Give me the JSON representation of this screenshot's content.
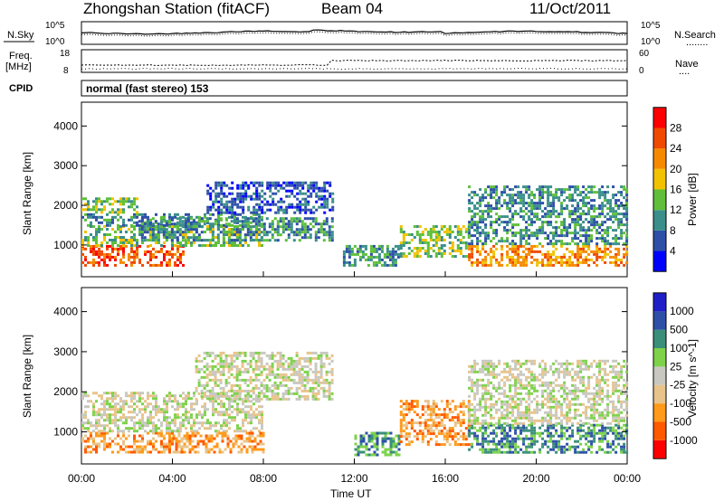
{
  "header": {
    "station": "Zhongshan Station (fitACF)",
    "beam": "Beam 04",
    "date": "11/Oct/2011",
    "program": "normal (fast stereo) 153"
  },
  "strip_labels": {
    "nsky": "N.Sky",
    "nsearch": "N.Search",
    "nsearch_dots": "........",
    "freq_line1": "Freq.",
    "freq_line2": "[MHz]",
    "nave": "Nave",
    "nave_dots": "....",
    "cpid": "CPID"
  },
  "strip_ticks": {
    "noise_left": [
      "10^5",
      "10^0"
    ],
    "noise_right": [
      "10^5",
      "10^0"
    ],
    "freq_left": [
      "18",
      "8"
    ],
    "freq_right": [
      "60",
      "0"
    ]
  },
  "colors": {
    "power_scale": [
      "#0000ff",
      "#2e4fa8",
      "#3a8f8a",
      "#5fbf3a",
      "#f2c200",
      "#f58a00",
      "#f04a00",
      "#ff0000"
    ],
    "velocity_scale": [
      "#ff0000",
      "#ff5a00",
      "#ff9a1a",
      "#e8c48a",
      "#c8c8c0",
      "#7ed24a",
      "#3a8f7a",
      "#2e4fa8",
      "#1f1fc8"
    ]
  },
  "chart_data": [
    {
      "type": "heatmap",
      "name_panel": "power",
      "ylabel": "Slant Range [km]",
      "yticks": [
        "1000",
        "2000",
        "3000",
        "4000"
      ],
      "ylim": [
        200,
        4600
      ],
      "xlim": [
        0,
        24
      ],
      "colorbar_label": "Power [dB]",
      "colorbar_ticks": [
        "4",
        "8",
        "12",
        "16",
        "20",
        "24",
        "28"
      ],
      "cells": [
        {
          "t0": 0.0,
          "t1": 4.5,
          "r0": 500,
          "r1": 1000,
          "level": 6
        },
        {
          "t0": 0.0,
          "t1": 8.0,
          "r0": 1000,
          "r1": 1500,
          "level": 3
        },
        {
          "t0": 0.0,
          "t1": 8.0,
          "r0": 1500,
          "r1": 1800,
          "level": 2
        },
        {
          "t0": 0.0,
          "t1": 2.5,
          "r0": 1800,
          "r1": 2200,
          "level": 3
        },
        {
          "t0": 2.5,
          "t1": 11.0,
          "r0": 1100,
          "r1": 1700,
          "level": 2
        },
        {
          "t0": 5.5,
          "t1": 11.0,
          "r0": 1800,
          "r1": 2600,
          "level": 1
        },
        {
          "t0": 11.5,
          "t1": 14.0,
          "r0": 500,
          "r1": 1000,
          "level": 2
        },
        {
          "t0": 14.0,
          "t1": 17.0,
          "r0": 700,
          "r1": 1500,
          "level": 3
        },
        {
          "t0": 17.0,
          "t1": 24.0,
          "r0": 500,
          "r1": 1000,
          "level": 5
        },
        {
          "t0": 17.0,
          "t1": 24.0,
          "r0": 1000,
          "r1": 2500,
          "level": 2
        }
      ]
    },
    {
      "type": "heatmap",
      "name_panel": "velocity",
      "ylabel": "Slant Range [km]",
      "yticks": [
        "1000",
        "2000",
        "3000",
        "4000"
      ],
      "ylim": [
        200,
        4600
      ],
      "xlim": [
        0,
        24
      ],
      "xticks": [
        "00:00",
        "04:00",
        "08:00",
        "12:00",
        "16:00",
        "20:00",
        "00:00"
      ],
      "xlabel": "Time UT",
      "colorbar_label": "Velocity [m s^-1]",
      "colorbar_ticks": [
        "1000",
        "500",
        "100",
        "25",
        "-25",
        "-100",
        "-500",
        "-1000"
      ],
      "cells": [
        {
          "t0": 0.0,
          "t1": 4.0,
          "r0": 500,
          "r1": 1000,
          "level": 2
        },
        {
          "t0": 0.0,
          "t1": 8.0,
          "r0": 1000,
          "r1": 2000,
          "level": 4
        },
        {
          "t0": 4.0,
          "t1": 8.0,
          "r0": 500,
          "r1": 1000,
          "level": 2
        },
        {
          "t0": 5.0,
          "t1": 11.0,
          "r0": 1800,
          "r1": 3000,
          "level": 4
        },
        {
          "t0": 12.0,
          "t1": 14.0,
          "r0": 400,
          "r1": 1000,
          "level": 6
        },
        {
          "t0": 14.0,
          "t1": 17.0,
          "r0": 700,
          "r1": 1800,
          "level": 2
        },
        {
          "t0": 17.0,
          "t1": 24.0,
          "r0": 500,
          "r1": 1200,
          "level": 6
        },
        {
          "t0": 17.0,
          "t1": 24.0,
          "r0": 1200,
          "r1": 2800,
          "level": 4
        }
      ]
    }
  ]
}
